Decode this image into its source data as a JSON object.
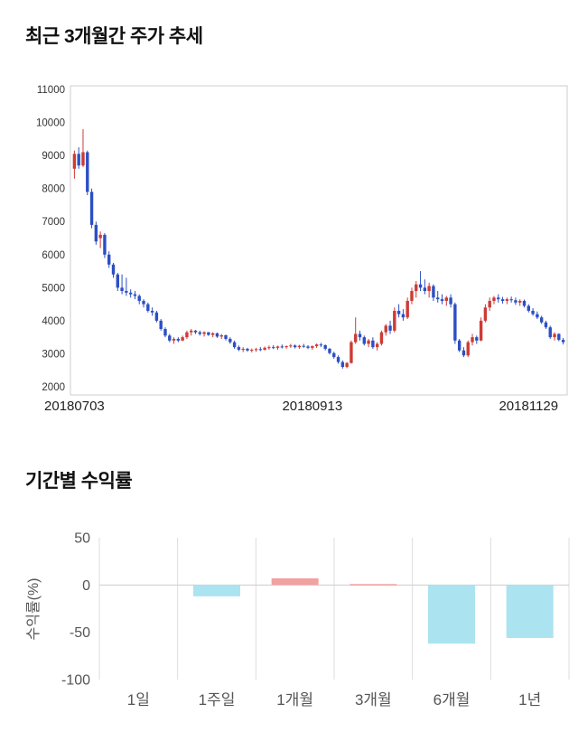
{
  "chart_data": [
    {
      "type": "candlestick",
      "title": "최근 3개월간 주가 추세",
      "ylim": [
        2000,
        11000
      ],
      "yticks": [
        11000,
        10000,
        9000,
        8000,
        7000,
        6000,
        5000,
        4000,
        3000,
        2000
      ],
      "xticks": [
        {
          "label": "20180703",
          "index": 0
        },
        {
          "label": "20180913",
          "index": 55
        },
        {
          "label": "20181129",
          "index": 105
        }
      ],
      "colors": {
        "up": "#cf3a35",
        "down": "#2b4fc4",
        "border": "#cccccc",
        "tick_text": "#333333"
      },
      "ohlc": [
        [
          8600,
          9150,
          8300,
          9050
        ],
        [
          9050,
          9250,
          8600,
          8700
        ],
        [
          8700,
          9800,
          8650,
          9100
        ],
        [
          9100,
          9150,
          7800,
          7900
        ],
        [
          7900,
          8000,
          6800,
          6900
        ],
        [
          6900,
          7000,
          6300,
          6400
        ],
        [
          6500,
          6700,
          6200,
          6600
        ],
        [
          6600,
          6650,
          5900,
          6000
        ],
        [
          6000,
          6100,
          5600,
          5700
        ],
        [
          5700,
          5750,
          5300,
          5400
        ],
        [
          5400,
          5450,
          4900,
          5000
        ],
        [
          5000,
          5400,
          4800,
          4900
        ],
        [
          4900,
          5300,
          4750,
          4850
        ],
        [
          4850,
          4950,
          4700,
          4800
        ],
        [
          4800,
          4900,
          4650,
          4750
        ],
        [
          4750,
          4800,
          4500,
          4600
        ],
        [
          4600,
          4650,
          4400,
          4500
        ],
        [
          4500,
          4550,
          4250,
          4300
        ],
        [
          4300,
          4400,
          4150,
          4250
        ],
        [
          4250,
          4300,
          3950,
          4000
        ],
        [
          4000,
          4050,
          3700,
          3750
        ],
        [
          3750,
          3800,
          3500,
          3550
        ],
        [
          3550,
          3600,
          3350,
          3400
        ],
        [
          3400,
          3500,
          3300,
          3450
        ],
        [
          3450,
          3500,
          3350,
          3400
        ],
        [
          3400,
          3550,
          3380,
          3500
        ],
        [
          3500,
          3700,
          3450,
          3650
        ],
        [
          3650,
          3750,
          3550,
          3700
        ],
        [
          3700,
          3720,
          3600,
          3650
        ],
        [
          3650,
          3700,
          3550,
          3600
        ],
        [
          3600,
          3680,
          3520,
          3650
        ],
        [
          3650,
          3660,
          3540,
          3570
        ],
        [
          3570,
          3650,
          3500,
          3620
        ],
        [
          3620,
          3640,
          3480,
          3520
        ],
        [
          3520,
          3600,
          3450,
          3560
        ],
        [
          3560,
          3580,
          3400,
          3450
        ],
        [
          3450,
          3500,
          3300,
          3350
        ],
        [
          3350,
          3400,
          3150,
          3200
        ],
        [
          3200,
          3250,
          3080,
          3120
        ],
        [
          3120,
          3200,
          3050,
          3150
        ],
        [
          3150,
          3180,
          3060,
          3100
        ],
        [
          3100,
          3160,
          3040,
          3120
        ],
        [
          3120,
          3180,
          3060,
          3140
        ],
        [
          3140,
          3200,
          3080,
          3120
        ],
        [
          3120,
          3220,
          3100,
          3180
        ],
        [
          3180,
          3250,
          3120,
          3200
        ],
        [
          3200,
          3260,
          3140,
          3180
        ],
        [
          3180,
          3240,
          3120,
          3220
        ],
        [
          3220,
          3280,
          3160,
          3200
        ],
        [
          3200,
          3250,
          3150,
          3230
        ],
        [
          3230,
          3300,
          3180,
          3250
        ],
        [
          3250,
          3280,
          3160,
          3200
        ],
        [
          3200,
          3270,
          3150,
          3240
        ],
        [
          3240,
          3300,
          3180,
          3220
        ],
        [
          3220,
          3260,
          3140,
          3180
        ],
        [
          3180,
          3250,
          3120,
          3230
        ],
        [
          3230,
          3310,
          3180,
          3280
        ],
        [
          3280,
          3330,
          3200,
          3260
        ],
        [
          3260,
          3280,
          3100,
          3150
        ],
        [
          3150,
          3180,
          2980,
          3020
        ],
        [
          3020,
          3060,
          2850,
          2900
        ],
        [
          2900,
          2950,
          2700,
          2750
        ],
        [
          2750,
          2800,
          2550,
          2600
        ],
        [
          2600,
          2750,
          2560,
          2720
        ],
        [
          2720,
          3400,
          2700,
          3350
        ],
        [
          3350,
          4100,
          3300,
          3600
        ],
        [
          3600,
          3700,
          3400,
          3500
        ],
        [
          3500,
          3550,
          3250,
          3300
        ],
        [
          3300,
          3450,
          3200,
          3400
        ],
        [
          3400,
          3500,
          3150,
          3200
        ],
        [
          3200,
          3350,
          3100,
          3300
        ],
        [
          3300,
          3700,
          3250,
          3650
        ],
        [
          3650,
          3900,
          3550,
          3850
        ],
        [
          3850,
          4000,
          3600,
          3700
        ],
        [
          3700,
          4400,
          3650,
          4300
        ],
        [
          4300,
          4500,
          4100,
          4200
        ],
        [
          4200,
          4350,
          4000,
          4100
        ],
        [
          4100,
          4700,
          4050,
          4600
        ],
        [
          4600,
          5000,
          4500,
          4900
        ],
        [
          4900,
          5200,
          4700,
          5100
        ],
        [
          5100,
          5500,
          4900,
          5000
        ],
        [
          5000,
          5250,
          4800,
          4900
        ],
        [
          4900,
          5150,
          4700,
          5050
        ],
        [
          5050,
          5100,
          4600,
          4700
        ],
        [
          4700,
          4900,
          4550,
          4650
        ],
        [
          4650,
          4800,
          4500,
          4600
        ],
        [
          4600,
          4750,
          4450,
          4700
        ],
        [
          4700,
          4800,
          4400,
          4500
        ],
        [
          4500,
          4550,
          3300,
          3400
        ],
        [
          3400,
          3450,
          3050,
          3100
        ],
        [
          3100,
          3200,
          2900,
          2950
        ],
        [
          2950,
          3400,
          2900,
          3350
        ],
        [
          3350,
          3600,
          3250,
          3500
        ],
        [
          3500,
          3550,
          3300,
          3400
        ],
        [
          3400,
          4100,
          3380,
          4000
        ],
        [
          4000,
          4500,
          3950,
          4400
        ],
        [
          4400,
          4700,
          4300,
          4600
        ],
        [
          4600,
          4750,
          4500,
          4700
        ],
        [
          4700,
          4800,
          4550,
          4650
        ],
        [
          4650,
          4720,
          4520,
          4600
        ],
        [
          4600,
          4700,
          4500,
          4650
        ],
        [
          4650,
          4730,
          4550,
          4620
        ],
        [
          4620,
          4700,
          4480,
          4550
        ],
        [
          4550,
          4650,
          4450,
          4600
        ],
        [
          4600,
          4640,
          4400,
          4450
        ],
        [
          4450,
          4500,
          4250,
          4300
        ],
        [
          4300,
          4380,
          4150,
          4200
        ],
        [
          4200,
          4280,
          4050,
          4100
        ],
        [
          4100,
          4150,
          3900,
          3950
        ],
        [
          3950,
          4000,
          3750,
          3800
        ],
        [
          3800,
          3850,
          3450,
          3500
        ],
        [
          3500,
          3650,
          3400,
          3600
        ],
        [
          3600,
          3620,
          3380,
          3420
        ],
        [
          3420,
          3480,
          3280,
          3350
        ]
      ]
    },
    {
      "type": "bar",
      "title": "기간별 수익률",
      "ylabel": "수익률(%)",
      "ylim": [
        -100,
        50
      ],
      "yticks": [
        50,
        0,
        -50,
        -100
      ],
      "categories": [
        "1일",
        "1주일",
        "1개월",
        "3개월",
        "6개월",
        "1년"
      ],
      "values": [
        0,
        -12,
        7,
        1,
        -62,
        -56
      ],
      "colors": {
        "positive": "#f2a0a0",
        "negative": "#abe3f0",
        "grid": "#dddddd",
        "zero_line": "#cccccc",
        "tick_text": "#555555"
      },
      "legend": null,
      "grid": true
    }
  ]
}
